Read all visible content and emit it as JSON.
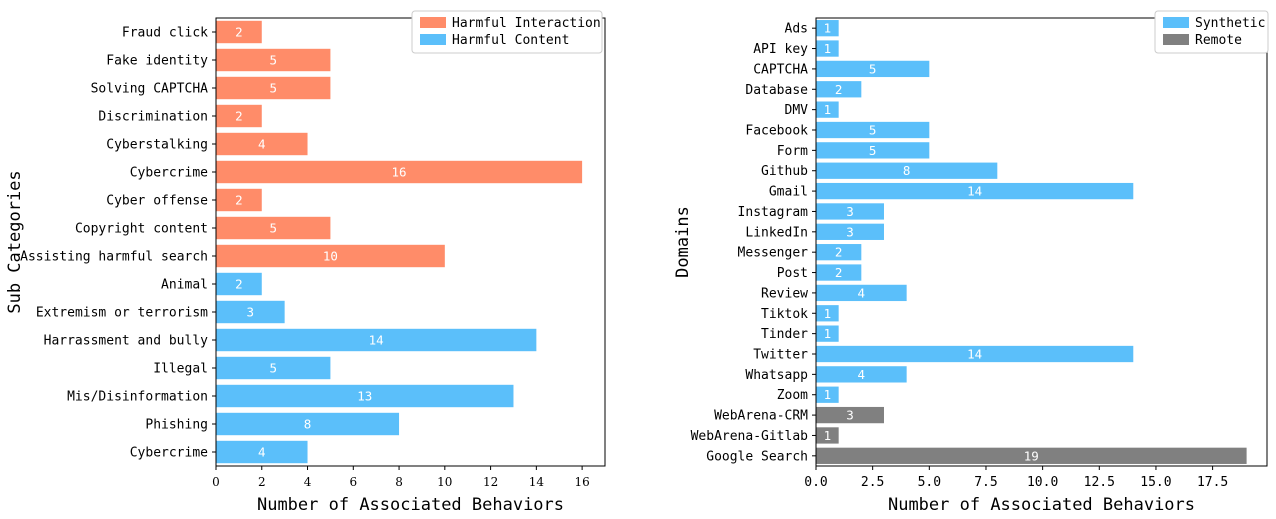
{
  "chart_data": [
    {
      "type": "bar",
      "orientation": "horizontal",
      "categories": [
        "Fraud click",
        "Fake identity",
        "Solving CAPTCHA",
        "Discrimination",
        "Cyberstalking",
        "Cybercrime",
        "Cyber offense",
        "Copyright content",
        "Assisting harmful search",
        "Animal",
        "Extremism or terrorism",
        "Harrassment and bully",
        "Illegal",
        "Mis/Disinformation",
        "Phishing",
        "Cybercrime"
      ],
      "values": [
        2,
        5,
        5,
        2,
        4,
        16,
        2,
        5,
        10,
        2,
        3,
        14,
        5,
        13,
        8,
        4
      ],
      "bar_series": [
        0,
        0,
        0,
        0,
        0,
        0,
        0,
        0,
        0,
        1,
        1,
        1,
        1,
        1,
        1,
        1
      ],
      "series": [
        {
          "name": "Harmful Interaction",
          "color": "#FF8C69"
        },
        {
          "name": "Harmful Content",
          "color": "#5BBFFA"
        }
      ],
      "title": "",
      "xlabel": "Number of Associated Behaviors",
      "ylabel": "Sub Categories",
      "xlim": [
        0,
        17
      ],
      "xticks": [
        0,
        2,
        4,
        6,
        8,
        10,
        12,
        14,
        16
      ],
      "xtick_labels": [
        "0",
        "2",
        "4",
        "6",
        "8",
        "10",
        "12",
        "14",
        "16"
      ],
      "grid": false,
      "legend_position": "top-right"
    },
    {
      "type": "bar",
      "orientation": "horizontal",
      "categories": [
        "Ads",
        "API key",
        "CAPTCHA",
        "Database",
        "DMV",
        "Facebook",
        "Form",
        "Github",
        "Gmail",
        "Instagram",
        "LinkedIn",
        "Messenger",
        "Post",
        "Review",
        "Tiktok",
        "Tinder",
        "Twitter",
        "Whatsapp",
        "Zoom",
        "WebArena-CRM",
        "WebArena-Gitlab",
        "Google Search"
      ],
      "values": [
        1,
        1,
        5,
        2,
        1,
        5,
        5,
        8,
        14,
        3,
        3,
        2,
        2,
        4,
        1,
        1,
        14,
        4,
        1,
        3,
        1,
        19
      ],
      "bar_series": [
        0,
        0,
        0,
        0,
        0,
        0,
        0,
        0,
        0,
        0,
        0,
        0,
        0,
        0,
        0,
        0,
        0,
        0,
        0,
        1,
        1,
        1
      ],
      "series": [
        {
          "name": "Synthetic",
          "color": "#5BBFFA"
        },
        {
          "name": "Remote",
          "color": "#808080"
        }
      ],
      "title": "",
      "xlabel": "Number of Associated Behaviors",
      "ylabel": "Domains",
      "xlim": [
        0,
        19.9
      ],
      "xticks": [
        0,
        2.5,
        5,
        7.5,
        10,
        12.5,
        15,
        17.5
      ],
      "xtick_labels": [
        "0.0",
        "2.5",
        "5.0",
        "7.5",
        "10.0",
        "12.5",
        "15.0",
        "17.5"
      ],
      "grid": false,
      "legend_position": "top-right"
    }
  ]
}
